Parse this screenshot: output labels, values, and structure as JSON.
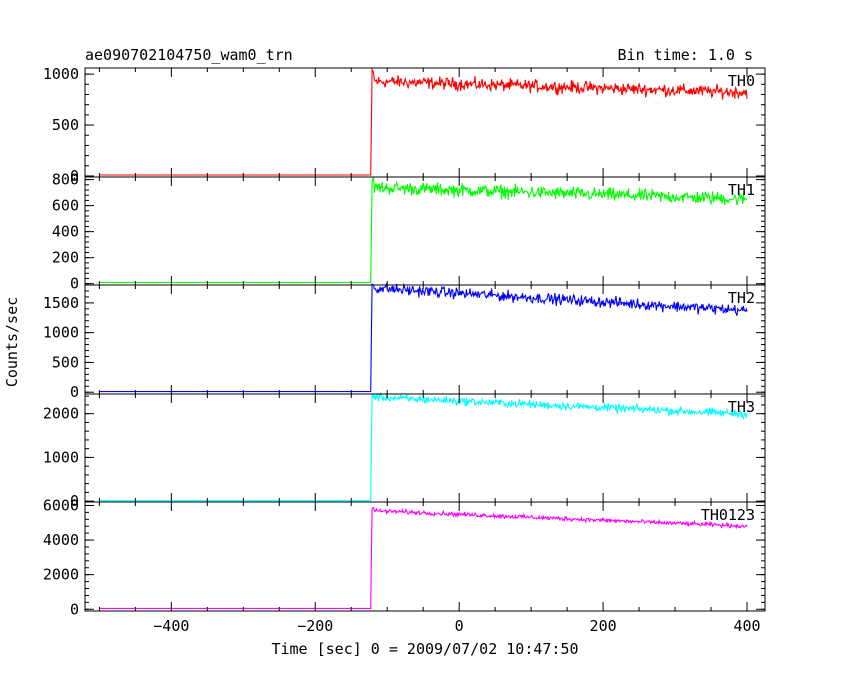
{
  "header": {
    "title": "ae090702104750_wam0_trn",
    "bin_time": "Bin time: 1.0 s"
  },
  "chart_data": {
    "type": "line",
    "title": "ae090702104750_wam0_trn",
    "xlabel": "Time [sec] 0 = 2009/07/02 10:47:50",
    "ylabel": "Counts/sec",
    "xlim": [
      -520,
      425
    ],
    "x_ticks": [
      -400,
      -200,
      0,
      200,
      400
    ],
    "x_tick_labels": [
      "−400",
      "−200",
      "0",
      "200",
      "400"
    ],
    "panels": [
      {
        "name": "TH0",
        "color": "#ff0000",
        "ylim": [
          -10,
          1060
        ],
        "y_ticks": [
          0,
          500,
          1000
        ],
        "y_tick_labels": [
          "0",
          "500",
          "1000"
        ],
        "baseline": 10,
        "onset": -122,
        "level_start": 930,
        "level_end": 820,
        "noise": 30,
        "peak_near_onset": 1020
      },
      {
        "name": "TH1",
        "color": "#00ff00",
        "ylim": [
          -10,
          820
        ],
        "y_ticks": [
          0,
          200,
          400,
          600,
          800
        ],
        "y_tick_labels": [
          "0",
          "200",
          "400",
          "600",
          "800"
        ],
        "baseline": 10,
        "onset": -122,
        "level_start": 740,
        "level_end": 650,
        "noise": 25,
        "peak_near_onset": 800
      },
      {
        "name": "TH2",
        "color": "#0000ff",
        "ylim": [
          -30,
          1800
        ],
        "y_ticks": [
          0,
          500,
          1000,
          1500
        ],
        "y_tick_labels": [
          "0",
          "500",
          "1000",
          "1500"
        ],
        "baseline": 10,
        "onset": -122,
        "level_start": 1750,
        "level_end": 1370,
        "noise": 45,
        "peak_near_onset": 1790
      },
      {
        "name": "TH3",
        "color": "#00ffff",
        "ylim": [
          -20,
          2450
        ],
        "y_ticks": [
          0,
          1000,
          2000
        ],
        "y_tick_labels": [
          "0",
          "1000",
          "2000"
        ],
        "baseline": 10,
        "onset": -122,
        "level_start": 2380,
        "level_end": 1990,
        "noise": 45,
        "peak_near_onset": 2420
      },
      {
        "name": "TH0123",
        "color": "#ff00ff",
        "ylim": [
          -100,
          6200
        ],
        "y_ticks": [
          0,
          2000,
          4000,
          6000
        ],
        "y_tick_labels": [
          "0",
          "2000",
          "4000",
          "6000"
        ],
        "baseline": 50,
        "onset": -122,
        "level_start": 5700,
        "level_end": 4800,
        "noise": 60,
        "peak_near_onset": 5850
      }
    ]
  }
}
